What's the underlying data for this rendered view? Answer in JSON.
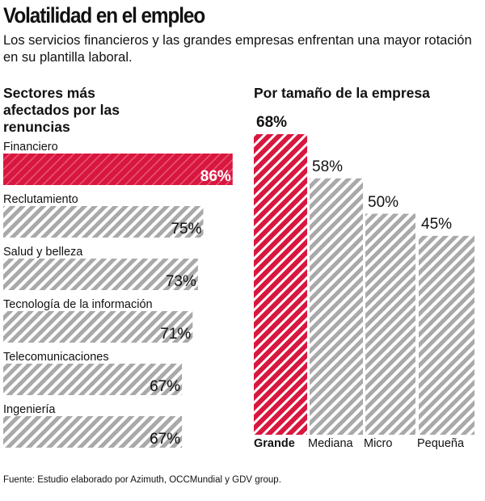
{
  "title": "Volatilidad en el empleo",
  "subtitle": "Los servicios financieros y las grandes empresas enfrentan una mayor rotación en su plantilla laboral.",
  "source": "Fuente: Estudio elaborado por Azimuth, OCCMundial y GDV group.",
  "colors": {
    "highlight": "#d8173f",
    "default": "#a9a9a9"
  },
  "chart_data": [
    {
      "type": "bar",
      "orientation": "horizontal",
      "title": "Sectores más afectados por las renuncias",
      "categories": [
        "Financiero",
        "Reclutamiento",
        "Salud y belleza",
        "Tecnología de la información",
        "Telecomunicaciones",
        "Ingeniería"
      ],
      "values": [
        86,
        75,
        73,
        71,
        67,
        67
      ],
      "labels": [
        "86%",
        "75%",
        "73%",
        "71%",
        "67%",
        "67%"
      ],
      "highlight": "Financiero",
      "pattern": "diagonal-stripes"
    },
    {
      "type": "bar",
      "orientation": "vertical",
      "title": "Por tamaño de la empresa",
      "categories": [
        "Grande",
        "Mediana",
        "Micro",
        "Pequeña"
      ],
      "values": [
        68,
        58,
        50,
        45
      ],
      "labels": [
        "68%",
        "58%",
        "50%",
        "45%"
      ],
      "highlight": "Grande",
      "pattern": "diagonal-stripes"
    }
  ]
}
